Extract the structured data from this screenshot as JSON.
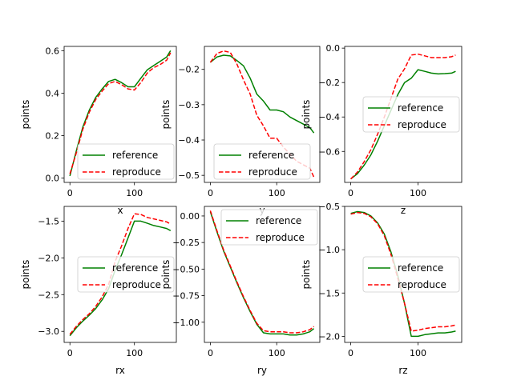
{
  "chart_data": [
    {
      "type": "line",
      "xlabel": "x",
      "ylabel": "points",
      "xlim": [
        -9,
        165
      ],
      "ylim": [
        -0.02,
        0.62
      ],
      "xticks": [
        0,
        100
      ],
      "yticks": [
        0.0,
        0.2,
        0.4,
        0.6
      ],
      "yticklabels": [
        "0.0",
        "0.2",
        "0.4",
        "0.6"
      ],
      "legend": "lower right",
      "series": [
        {
          "name": "reference",
          "color": "#008000",
          "style": "solid",
          "x": [
            0,
            10,
            20,
            30,
            40,
            50,
            60,
            70,
            80,
            90,
            100,
            110,
            120,
            130,
            140,
            150,
            156
          ],
          "y": [
            0.01,
            0.13,
            0.24,
            0.32,
            0.38,
            0.42,
            0.455,
            0.465,
            0.45,
            0.43,
            0.43,
            0.47,
            0.51,
            0.53,
            0.55,
            0.57,
            0.6
          ]
        },
        {
          "name": "reproduce",
          "color": "#ff0000",
          "style": "dashed",
          "x": [
            0,
            10,
            20,
            30,
            40,
            50,
            60,
            70,
            80,
            90,
            100,
            110,
            120,
            130,
            140,
            150,
            156
          ],
          "y": [
            0.02,
            0.12,
            0.23,
            0.31,
            0.37,
            0.41,
            0.445,
            0.455,
            0.44,
            0.42,
            0.415,
            0.45,
            0.495,
            0.52,
            0.535,
            0.555,
            0.59
          ]
        }
      ]
    },
    {
      "type": "line",
      "xlabel": "y",
      "ylabel": "points",
      "xlim": [
        -9,
        165
      ],
      "ylim": [
        -0.52,
        -0.135
      ],
      "xticks": [
        0,
        100
      ],
      "yticks": [
        -0.2,
        -0.3,
        -0.4,
        -0.5
      ],
      "yticklabels": [
        "−0.2",
        "−0.3",
        "−0.4",
        "−0.5"
      ],
      "legend": "lower center",
      "series": [
        {
          "name": "reference",
          "color": "#008000",
          "style": "solid",
          "x": [
            0,
            10,
            20,
            30,
            40,
            50,
            60,
            70,
            80,
            90,
            100,
            110,
            120,
            130,
            140,
            150,
            156
          ],
          "y": [
            -0.18,
            -0.165,
            -0.16,
            -0.162,
            -0.175,
            -0.19,
            -0.225,
            -0.27,
            -0.29,
            -0.315,
            -0.315,
            -0.32,
            -0.335,
            -0.345,
            -0.355,
            -0.365,
            -0.38
          ]
        },
        {
          "name": "reproduce",
          "color": "#ff0000",
          "style": "dashed",
          "x": [
            0,
            10,
            20,
            30,
            40,
            50,
            60,
            70,
            80,
            90,
            100,
            110,
            120,
            130,
            140,
            150,
            156
          ],
          "y": [
            -0.18,
            -0.155,
            -0.148,
            -0.152,
            -0.185,
            -0.23,
            -0.27,
            -0.33,
            -0.36,
            -0.395,
            -0.395,
            -0.42,
            -0.44,
            -0.46,
            -0.47,
            -0.48,
            -0.505
          ]
        }
      ]
    },
    {
      "type": "line",
      "xlabel": "z",
      "ylabel": "points",
      "xlim": [
        -9,
        165
      ],
      "ylim": [
        -0.78,
        0.01
      ],
      "xticks": [
        0,
        100
      ],
      "yticks": [
        0.0,
        -0.2,
        -0.4,
        -0.6
      ],
      "yticklabels": [
        "0.0",
        "−0.2",
        "−0.4",
        "−0.6"
      ],
      "legend": "center right",
      "series": [
        {
          "name": "reference",
          "color": "#008000",
          "style": "solid",
          "x": [
            0,
            10,
            20,
            30,
            40,
            50,
            60,
            70,
            80,
            90,
            100,
            110,
            120,
            130,
            140,
            150,
            156
          ],
          "y": [
            -0.76,
            -0.73,
            -0.68,
            -0.62,
            -0.54,
            -0.45,
            -0.36,
            -0.27,
            -0.2,
            -0.175,
            -0.125,
            -0.135,
            -0.145,
            -0.15,
            -0.148,
            -0.145,
            -0.135
          ]
        },
        {
          "name": "reproduce",
          "color": "#ff0000",
          "style": "dashed",
          "x": [
            0,
            10,
            20,
            30,
            40,
            50,
            60,
            70,
            80,
            90,
            100,
            110,
            120,
            130,
            140,
            150,
            156
          ],
          "y": [
            -0.76,
            -0.72,
            -0.66,
            -0.59,
            -0.5,
            -0.4,
            -0.29,
            -0.18,
            -0.12,
            -0.04,
            -0.035,
            -0.045,
            -0.055,
            -0.055,
            -0.055,
            -0.05,
            -0.04
          ]
        }
      ]
    },
    {
      "type": "line",
      "xlabel": "rx",
      "ylabel": "points",
      "xlim": [
        -9,
        165
      ],
      "ylim": [
        -3.15,
        -1.3
      ],
      "xticks": [
        0,
        100
      ],
      "yticks": [
        -1.5,
        -2.0,
        -2.5,
        -3.0
      ],
      "yticklabels": [
        "−1.5",
        "−2.0",
        "−2.5",
        "−3.0"
      ],
      "legend": "center right",
      "series": [
        {
          "name": "reference",
          "color": "#008000",
          "style": "solid",
          "x": [
            0,
            10,
            20,
            30,
            40,
            50,
            60,
            70,
            80,
            90,
            100,
            110,
            120,
            130,
            140,
            150,
            156
          ],
          "y": [
            -3.06,
            -2.95,
            -2.86,
            -2.78,
            -2.69,
            -2.57,
            -2.42,
            -2.17,
            -1.96,
            -1.73,
            -1.5,
            -1.5,
            -1.53,
            -1.56,
            -1.58,
            -1.6,
            -1.63
          ]
        },
        {
          "name": "reproduce",
          "color": "#ff0000",
          "style": "dashed",
          "x": [
            0,
            10,
            20,
            30,
            40,
            50,
            60,
            70,
            80,
            90,
            100,
            110,
            120,
            130,
            140,
            150,
            156
          ],
          "y": [
            -3.04,
            -2.93,
            -2.84,
            -2.76,
            -2.66,
            -2.53,
            -2.36,
            -2.05,
            -1.84,
            -1.6,
            -1.4,
            -1.41,
            -1.45,
            -1.47,
            -1.49,
            -1.51,
            -1.54
          ]
        }
      ]
    },
    {
      "type": "line",
      "xlabel": "ry",
      "ylabel": "points",
      "xlim": [
        -9,
        165
      ],
      "ylim": [
        -1.19,
        0.09
      ],
      "xticks": [
        0,
        100
      ],
      "yticks": [
        0.0,
        -0.25,
        -0.5,
        -0.75,
        -1.0
      ],
      "yticklabels": [
        "0.00",
        "−0.25",
        "−0.50",
        "−0.75",
        "−1.00"
      ],
      "legend": "upper right",
      "series": [
        {
          "name": "reference",
          "color": "#008000",
          "style": "solid",
          "x": [
            0,
            10,
            20,
            30,
            40,
            50,
            60,
            70,
            80,
            90,
            100,
            110,
            120,
            130,
            140,
            150,
            156
          ],
          "y": [
            0.04,
            -0.15,
            -0.33,
            -0.48,
            -0.63,
            -0.77,
            -0.9,
            -1.02,
            -1.1,
            -1.11,
            -1.11,
            -1.11,
            -1.12,
            -1.12,
            -1.11,
            -1.09,
            -1.06
          ]
        },
        {
          "name": "reproduce",
          "color": "#ff0000",
          "style": "dashed",
          "x": [
            0,
            10,
            20,
            30,
            40,
            50,
            60,
            70,
            80,
            90,
            100,
            110,
            120,
            130,
            140,
            150,
            156
          ],
          "y": [
            0.05,
            -0.14,
            -0.32,
            -0.47,
            -0.62,
            -0.76,
            -0.89,
            -1.01,
            -1.08,
            -1.09,
            -1.09,
            -1.09,
            -1.1,
            -1.1,
            -1.09,
            -1.07,
            -1.04
          ]
        }
      ]
    },
    {
      "type": "line",
      "xlabel": "rz",
      "ylabel": "points",
      "xlim": [
        -9,
        165
      ],
      "ylim": [
        -2.07,
        -0.5
      ],
      "xticks": [
        0,
        100
      ],
      "yticks": [
        -0.5,
        -1.0,
        -1.5,
        -2.0
      ],
      "yticklabels": [
        "−0.5",
        "−1.0",
        "−1.5",
        "−2.0"
      ],
      "legend": "center right",
      "series": [
        {
          "name": "reference",
          "color": "#008000",
          "style": "solid",
          "x": [
            0,
            10,
            20,
            30,
            40,
            50,
            60,
            70,
            80,
            90,
            100,
            110,
            120,
            130,
            140,
            150,
            156
          ],
          "y": [
            -0.58,
            -0.56,
            -0.57,
            -0.61,
            -0.69,
            -0.82,
            -1.03,
            -1.3,
            -1.62,
            -2.0,
            -2.0,
            -1.98,
            -1.97,
            -1.96,
            -1.96,
            -1.95,
            -1.94
          ]
        },
        {
          "name": "reproduce",
          "color": "#ff0000",
          "style": "dashed",
          "x": [
            0,
            10,
            20,
            30,
            40,
            50,
            60,
            70,
            80,
            90,
            100,
            110,
            120,
            130,
            140,
            150,
            156
          ],
          "y": [
            -0.59,
            -0.57,
            -0.58,
            -0.62,
            -0.7,
            -0.84,
            -1.06,
            -1.33,
            -1.62,
            -1.94,
            -1.93,
            -1.91,
            -1.9,
            -1.89,
            -1.89,
            -1.88,
            -1.87
          ]
        }
      ]
    }
  ]
}
